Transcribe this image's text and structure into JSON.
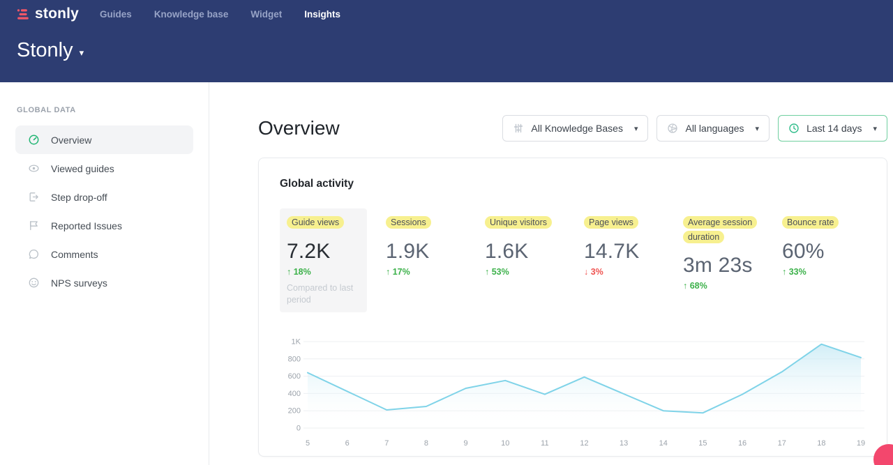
{
  "nav": {
    "logo_text": "stonly",
    "items": [
      {
        "label": "Guides",
        "active": false
      },
      {
        "label": "Knowledge base",
        "active": false
      },
      {
        "label": "Widget",
        "active": false
      },
      {
        "label": "Insights",
        "active": true
      }
    ]
  },
  "workspace": {
    "title": "Stonly"
  },
  "sidebar": {
    "section_label": "GLOBAL DATA",
    "items": [
      {
        "label": "Overview",
        "icon": "gauge",
        "active": true
      },
      {
        "label": "Viewed guides",
        "icon": "eye",
        "active": false
      },
      {
        "label": "Step drop-off",
        "icon": "step-out",
        "active": false
      },
      {
        "label": "Reported Issues",
        "icon": "flag",
        "active": false
      },
      {
        "label": "Comments",
        "icon": "comment",
        "active": false
      },
      {
        "label": "NPS surveys",
        "icon": "smiley",
        "active": false
      }
    ]
  },
  "main": {
    "page_title": "Overview",
    "filters": [
      {
        "label": "All Knowledge Bases",
        "icon": "sliders",
        "accent": false
      },
      {
        "label": "All languages",
        "icon": "globe",
        "accent": false
      },
      {
        "label": "Last 14 days",
        "icon": "clock",
        "accent": true
      }
    ],
    "card": {
      "title": "Global activity",
      "metrics": [
        {
          "label": "Guide views",
          "value": "7.2K",
          "delta": "18%",
          "direction": "up",
          "note": "Compared to last period",
          "selected": true
        },
        {
          "label": "Sessions",
          "value": "1.9K",
          "delta": "17%",
          "direction": "up",
          "note": "",
          "selected": false
        },
        {
          "label": "Unique visitors",
          "value": "1.6K",
          "delta": "53%",
          "direction": "up",
          "note": "",
          "selected": false
        },
        {
          "label": "Page views",
          "value": "14.7K",
          "delta": "3%",
          "direction": "down",
          "note": "",
          "selected": false
        },
        {
          "label": "Average session duration",
          "value": "3m 23s",
          "delta": "68%",
          "direction": "up",
          "note": "",
          "selected": false
        },
        {
          "label": "Bounce rate",
          "value": "60%",
          "delta": "33%",
          "direction": "up",
          "note": "",
          "selected": false
        }
      ]
    }
  },
  "chart_data": {
    "type": "area",
    "title": "Global activity — Guide views, last 14 days",
    "x": [
      5,
      6,
      7,
      8,
      9,
      10,
      11,
      12,
      13,
      14,
      15,
      16,
      17,
      18,
      19
    ],
    "values": [
      640,
      425,
      210,
      250,
      460,
      550,
      390,
      590,
      395,
      200,
      175,
      390,
      650,
      970,
      815
    ],
    "xlabel": "",
    "ylabel": "",
    "ylim": [
      0,
      1000
    ],
    "y_ticks": [
      0,
      200,
      400,
      600,
      800,
      1000
    ],
    "y_tick_labels": [
      "0",
      "200",
      "400",
      "600",
      "800",
      "1K"
    ],
    "grid": "horizontal",
    "legend": "none",
    "line_color": "#7fd3e8",
    "fill_top_color": "#c2e8f4",
    "fill_bottom_color": "#ffffff"
  },
  "colors": {
    "header_bg": "#2d3d72",
    "logo_pink": "#f25767",
    "accent_green": "#31bd8b",
    "highlight_yellow": "#f7f08f",
    "delta_up": "#3cb14a",
    "delta_down": "#ef5350",
    "chat_bubble": "#f3476d"
  }
}
